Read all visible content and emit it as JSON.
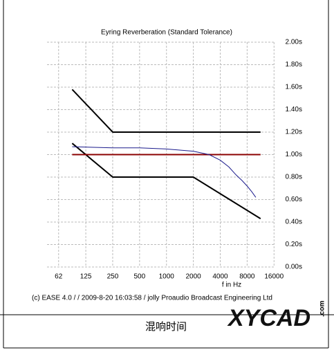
{
  "chart_data": {
    "type": "line",
    "title": "Eyring Reverberation (Standard Tolerance)",
    "x_label": "f in Hz",
    "xlim": [
      46,
      16500
    ],
    "xscale": "log",
    "xticks": [
      62,
      125,
      250,
      500,
      1000,
      2000,
      4000,
      8000,
      16000
    ],
    "ylim": [
      0,
      2
    ],
    "yticks": [
      {
        "value": 0,
        "label": "0.00s"
      },
      {
        "value": 0.2,
        "label": "0.20s"
      },
      {
        "value": 0.4,
        "label": "0.40s"
      },
      {
        "value": 0.6,
        "label": "0.60s"
      },
      {
        "value": 0.8,
        "label": "0.80s"
      },
      {
        "value": 1,
        "label": "1.00s"
      },
      {
        "value": 1.2,
        "label": "1.20s"
      },
      {
        "value": 1.4,
        "label": "1.40s"
      },
      {
        "value": 1.6,
        "label": "1.60s"
      },
      {
        "value": 1.8,
        "label": "1.80s"
      },
      {
        "value": 2,
        "label": "2.00s"
      }
    ],
    "grid": true,
    "series": [
      {
        "color": "#000000",
        "x": [
          88,
          250,
          11300
        ],
        "values": [
          1.58,
          1.2,
          1.2
        ]
      },
      {
        "color": "#000000",
        "x": [
          88,
          250,
          2000,
          11300
        ],
        "values": [
          1.1,
          0.8,
          0.8,
          0.43
        ]
      },
      {
        "color": "#8b0000",
        "x": [
          88,
          11300
        ],
        "values": [
          1,
          1
        ]
      },
      {
        "color": "#1a1a8c",
        "x": [
          88,
          250,
          500,
          1000,
          2000,
          3000,
          4000,
          5000,
          6000,
          7000,
          8000,
          9000,
          10000
        ],
        "values": [
          1.07,
          1.06,
          1.06,
          1.05,
          1.03,
          1.0,
          0.95,
          0.89,
          0.82,
          0.77,
          0.72,
          0.67,
          0.62
        ]
      }
    ],
    "footer": "(c) EASE 4.0  /    / 2009-8-20 16:03:58 / jolly Proaudio Broadcast Engineering Ltd"
  },
  "caption": "混响时间",
  "watermark": "XYCAD",
  "watermark_suffix": ".com"
}
